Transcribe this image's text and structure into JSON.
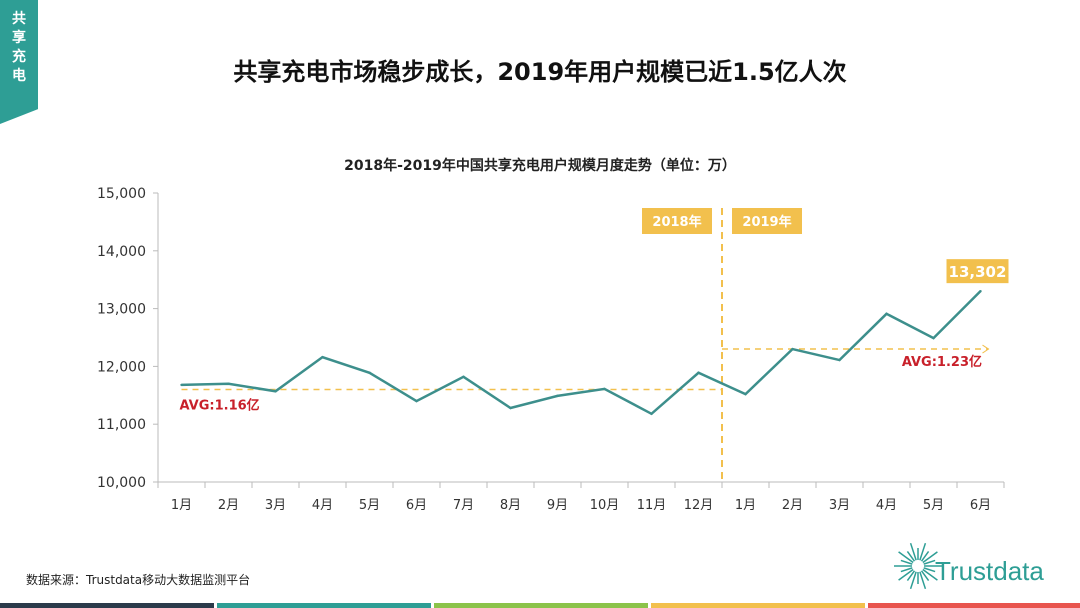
{
  "tag": "共享充电",
  "title": "共享充电市场稳步成长，2019年用户规模已近1.5亿人次",
  "source": "数据来源：Trustdata移动大数据监测平台",
  "logo": "Trustdata",
  "colors": {
    "line": "#3d8f8c",
    "accent": "#f2c04d",
    "avg_text": "#c8202a",
    "teal": "#2e9e95"
  },
  "chart_data": {
    "type": "line",
    "title": "2018年-2019年中国共享充电用户规模月度走势（单位：万）",
    "categories": [
      "1月",
      "2月",
      "3月",
      "4月",
      "5月",
      "6月",
      "7月",
      "8月",
      "9月",
      "10月",
      "11月",
      "12月",
      "1月",
      "2月",
      "3月",
      "4月",
      "5月",
      "6月"
    ],
    "values": [
      11680,
      11700,
      11570,
      12160,
      11890,
      11400,
      11820,
      11280,
      11490,
      11610,
      11180,
      11890,
      11520,
      12300,
      12110,
      12910,
      12490,
      13302
    ],
    "ylim": [
      10000,
      15000
    ],
    "yticks": [
      "10,000",
      "11,000",
      "12,000",
      "13,000",
      "14,000",
      "15,000"
    ],
    "grid": false,
    "period_labels": [
      "2018年",
      "2019年"
    ],
    "last_label": "13,302",
    "averages": [
      {
        "label": "AVG:1.16亿",
        "value": 11600,
        "from": 0,
        "to": 12
      },
      {
        "label": "AVG:1.23亿",
        "value": 12300,
        "from": 12,
        "to": 17
      }
    ]
  }
}
